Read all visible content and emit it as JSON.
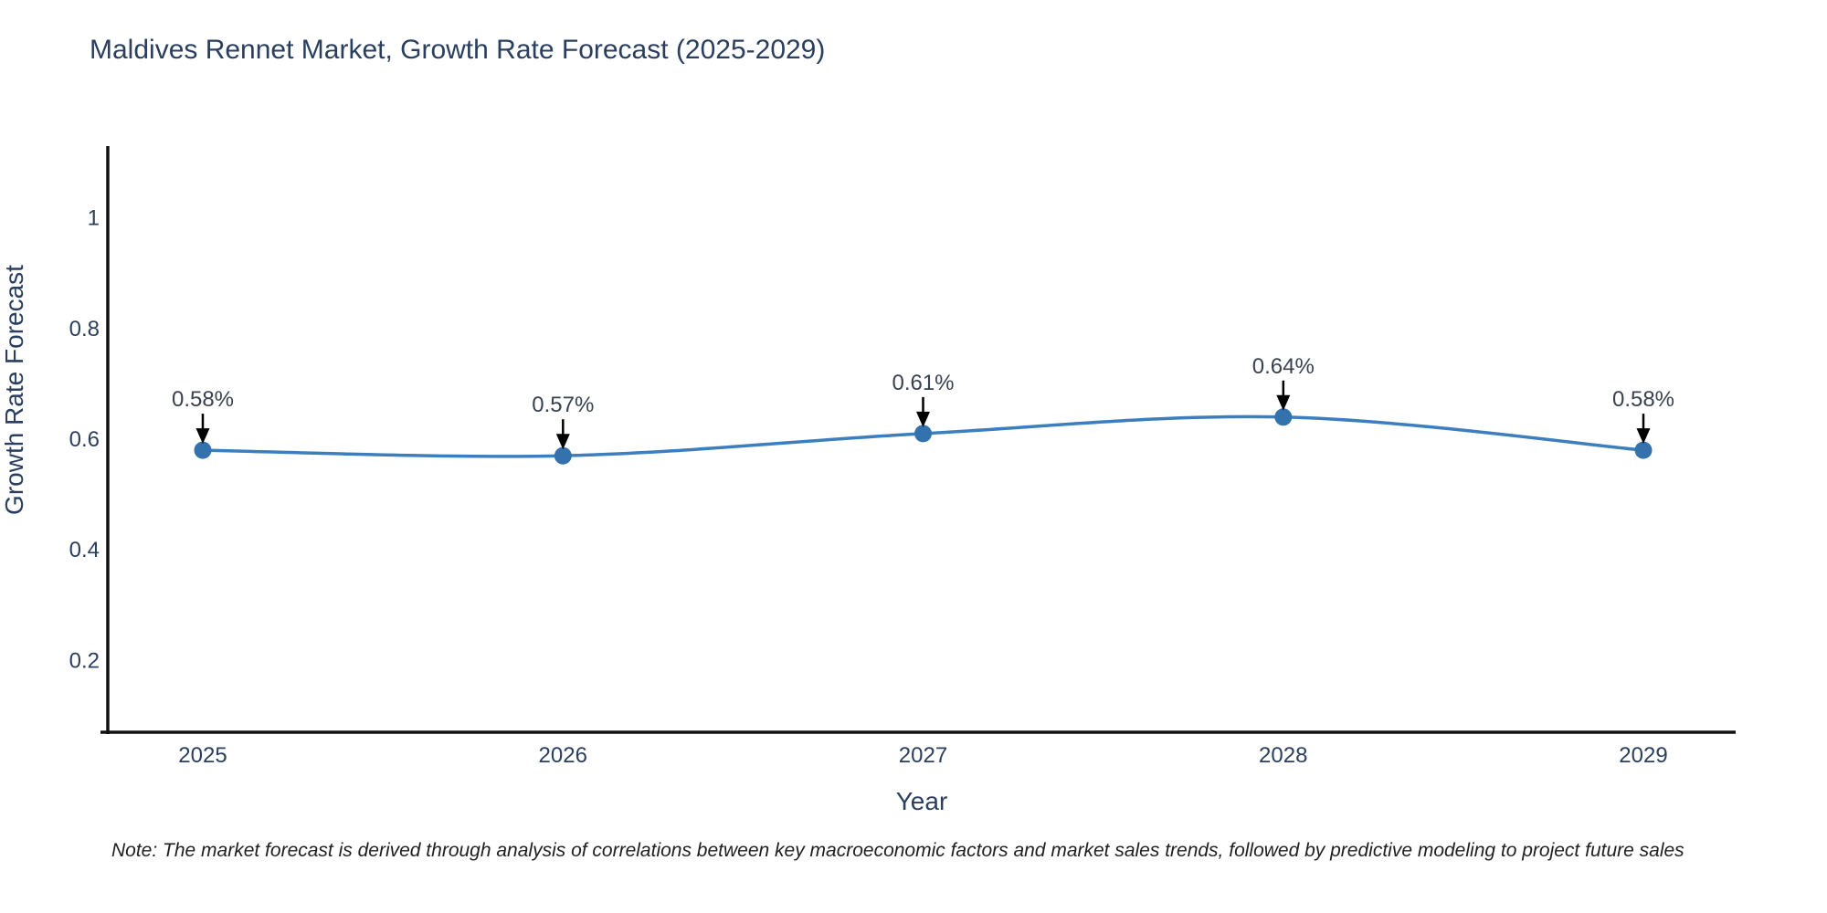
{
  "title": "Maldives Rennet Market, Growth Rate Forecast (2025-2029)",
  "note": "Note: The market forecast is derived through analysis of correlations between key macroeconomic factors and market sales trends, followed by predictive modeling to project future sales",
  "chart_data": {
    "type": "line",
    "title": "Maldives Rennet Market, Growth Rate Forecast (2025-2029)",
    "xlabel": "Year",
    "ylabel": "Growth Rate Forecast",
    "categories": [
      "2025",
      "2026",
      "2027",
      "2028",
      "2029"
    ],
    "series": [
      {
        "name": "Growth Rate Forecast",
        "values": [
          0.58,
          0.57,
          0.61,
          0.64,
          0.58
        ],
        "labels": [
          "0.58%",
          "0.57%",
          "0.61%",
          "0.64%",
          "0.58%"
        ]
      }
    ],
    "yticks": [
      0.2,
      0.4,
      0.6,
      0.8,
      1
    ],
    "ylim": [
      0.07,
      1.13
    ],
    "line_shape": "spline",
    "grid": false,
    "legend_position": "none",
    "annotation_style": "value-label-with-down-arrow",
    "colors": {
      "line": "#3d7ebf",
      "marker": "#3472ad",
      "axis": "#111111",
      "tick_text": "#2a3f5f",
      "annotation_text": "#39414f",
      "arrow": "#000000",
      "title_text": "#2a3f5f",
      "note_text": "#1f1f1f",
      "background": "#ffffff"
    }
  }
}
